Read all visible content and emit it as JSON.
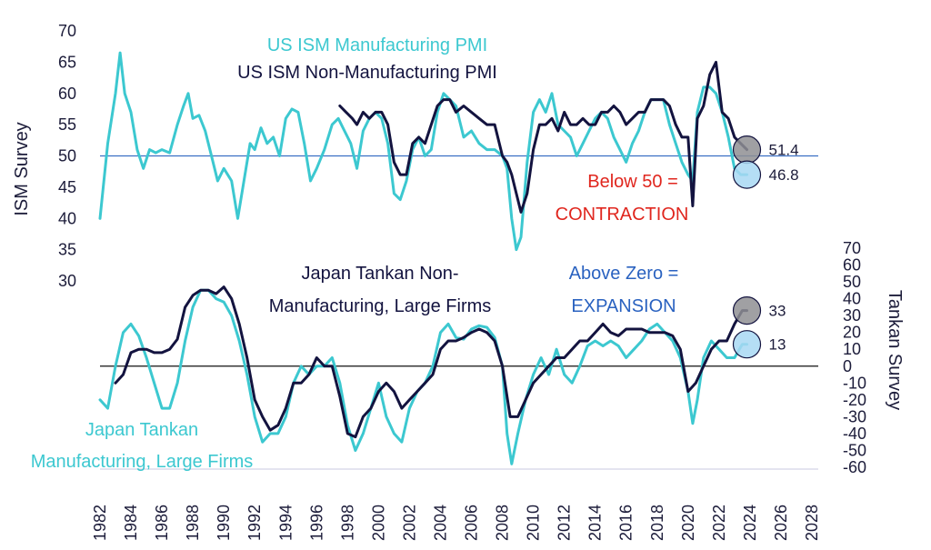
{
  "chart_data": {
    "type": "line",
    "left_axis_title": "ISM Survey",
    "right_axis_title": "Tankan Survey",
    "left_ticks": [
      70,
      65,
      60,
      55,
      50,
      45,
      40,
      35,
      30
    ],
    "right_ticks": [
      70,
      60,
      50,
      40,
      30,
      20,
      10,
      0,
      -10,
      -20,
      -30,
      -40,
      -50,
      -60
    ],
    "x_ticks": [
      "1982",
      "1984",
      "1986",
      "1988",
      "1990",
      "1992",
      "1994",
      "1996",
      "1998",
      "2000",
      "2002",
      "2004",
      "2006",
      "2008",
      "2010",
      "2012",
      "2014",
      "2016",
      "2018",
      "2020",
      "2022",
      "2024",
      "2026",
      "2028"
    ],
    "xlim": [
      1982,
      2028
    ],
    "left_ylim": [
      30,
      70
    ],
    "right_ylim": [
      -60,
      70
    ],
    "ism_reference": 50,
    "tankan_reference": 0,
    "colors": {
      "manufacturing": "#3cc8d0",
      "non_manufacturing": "#13133f",
      "reference_ism": "#3a6fc4",
      "reference_tankan": "#111111",
      "red": "#e0261e",
      "blue": "#2a62c0"
    },
    "annotations": {
      "ism_mfg": "US ISM Manufacturing PMI",
      "ism_nonmfg": "US ISM Non-Manufacturing PMI",
      "below50_line1": "Below 50 =",
      "below50_line2": "CONTRACTION",
      "tankan_nonmfg_line1": "Japan Tankan Non-",
      "tankan_nonmfg_line2": "Manufacturing, Large Firms",
      "above0_line1": "Above Zero =",
      "above0_line2": "EXPANSION",
      "tankan_mfg_line1": "Japan Tankan",
      "tankan_mfg_line2": "Manufacturing, Large Firms"
    },
    "end_values": {
      "ism_nonmfg": "51.4",
      "ism_mfg": "46.8",
      "tankan_nonmfg": "33",
      "tankan_mfg": "13"
    },
    "series": [
      {
        "key": "ism_mfg",
        "axis": "left",
        "x": [
          1982.0,
          1982.5,
          1983.0,
          1983.3,
          1983.6,
          1984.0,
          1984.4,
          1984.8,
          1985.2,
          1985.6,
          1986.0,
          1986.5,
          1987.0,
          1987.4,
          1987.7,
          1988.0,
          1988.4,
          1988.8,
          1989.2,
          1989.6,
          1990.0,
          1990.5,
          1990.9,
          1991.3,
          1991.7,
          1992.0,
          1992.4,
          1992.8,
          1993.2,
          1993.6,
          1994.0,
          1994.4,
          1994.8,
          1995.2,
          1995.6,
          1996.0,
          1996.5,
          1997.0,
          1997.4,
          1997.8,
          1998.2,
          1998.6,
          1999.0,
          1999.4,
          1999.8,
          2000.2,
          2000.6,
          2001.0,
          2001.4,
          2001.8,
          2002.2,
          2002.6,
          2003.0,
          2003.4,
          2003.8,
          2004.2,
          2004.6,
          2005.0,
          2005.5,
          2006.0,
          2006.5,
          2007.0,
          2007.5,
          2008.0,
          2008.3,
          2008.6,
          2008.9,
          2009.2,
          2009.6,
          2010.0,
          2010.4,
          2010.8,
          2011.2,
          2011.6,
          2012.0,
          2012.4,
          2012.8,
          2013.2,
          2013.6,
          2014.0,
          2014.4,
          2014.8,
          2015.2,
          2015.6,
          2016.0,
          2016.4,
          2016.8,
          2017.2,
          2017.6,
          2018.0,
          2018.4,
          2018.8,
          2019.2,
          2019.6,
          2020.0,
          2020.3,
          2020.6,
          2021.0,
          2021.4,
          2021.8,
          2022.2,
          2022.6,
          2023.0,
          2023.4,
          2023.8
        ],
        "values": [
          40,
          52,
          60,
          66.5,
          60,
          57,
          51,
          48,
          51,
          50.5,
          51,
          50.5,
          55,
          58,
          60,
          56,
          56.5,
          54,
          50,
          46,
          48,
          46,
          40,
          46,
          52,
          51,
          54.5,
          52,
          53,
          50,
          56,
          57.5,
          57,
          52,
          46,
          48,
          51,
          55,
          56,
          54,
          52,
          48,
          54,
          56,
          57,
          56,
          52,
          44,
          43,
          46,
          51,
          53,
          50,
          51,
          57,
          60,
          59,
          58,
          53,
          54,
          52,
          51,
          51,
          50,
          48,
          40,
          35,
          37,
          49,
          57,
          59,
          57,
          60,
          55,
          54,
          53,
          50,
          52,
          54,
          56,
          57,
          56,
          53,
          51,
          49,
          52,
          54,
          57,
          59,
          59,
          59,
          55,
          52,
          49,
          47,
          46,
          57,
          61,
          61,
          60,
          57,
          53,
          48,
          47,
          47
        ]
      },
      {
        "key": "ism_nonmfg",
        "axis": "left",
        "x": [
          1997.5,
          1997.9,
          1998.3,
          1998.6,
          1999.0,
          1999.4,
          1999.8,
          2000.2,
          2000.6,
          2001.0,
          2001.4,
          2001.8,
          2002.2,
          2002.6,
          2003.0,
          2003.4,
          2003.8,
          2004.2,
          2004.6,
          2005.0,
          2005.5,
          2006.0,
          2006.5,
          2007.0,
          2007.5,
          2008.0,
          2008.3,
          2008.6,
          2008.9,
          2009.2,
          2009.6,
          2010.0,
          2010.4,
          2010.8,
          2011.2,
          2011.6,
          2012.0,
          2012.4,
          2012.8,
          2013.2,
          2013.6,
          2014.0,
          2014.4,
          2014.8,
          2015.2,
          2015.6,
          2016.0,
          2016.4,
          2016.8,
          2017.2,
          2017.6,
          2018.0,
          2018.4,
          2018.8,
          2019.2,
          2019.6,
          2020.0,
          2020.3,
          2020.6,
          2021.0,
          2021.4,
          2021.8,
          2022.2,
          2022.6,
          2023.0,
          2023.4,
          2023.8
        ],
        "values": [
          58,
          57,
          56,
          55,
          57,
          56,
          57,
          57,
          55,
          49,
          47,
          47,
          52,
          53,
          52,
          55,
          58,
          59,
          59,
          57,
          58,
          57,
          56,
          55,
          55,
          50,
          49,
          47,
          44,
          41,
          44,
          51,
          55,
          55,
          56,
          54,
          57,
          55,
          55,
          56,
          55,
          55,
          57,
          57,
          58,
          57,
          55,
          56,
          57,
          57,
          59,
          59,
          59,
          58,
          55,
          53,
          53,
          42,
          56,
          58,
          63,
          65,
          57,
          56,
          53,
          52,
          51
        ]
      },
      {
        "key": "tankan_nonmfg",
        "axis": "right",
        "x": [
          1983.0,
          1983.5,
          1984.0,
          1984.5,
          1985.0,
          1985.5,
          1986.0,
          1986.5,
          1987.0,
          1987.5,
          1988.0,
          1988.5,
          1989.0,
          1989.5,
          1990.0,
          1990.5,
          1991.0,
          1991.5,
          1992.0,
          1992.5,
          1993.0,
          1993.5,
          1994.0,
          1994.5,
          1995.0,
          1995.5,
          1996.0,
          1996.5,
          1997.0,
          1997.5,
          1998.0,
          1998.5,
          1999.0,
          1999.5,
          2000.0,
          2000.5,
          2001.0,
          2001.5,
          2002.0,
          2002.5,
          2003.0,
          2003.5,
          2004.0,
          2004.5,
          2005.0,
          2005.5,
          2006.0,
          2006.5,
          2007.0,
          2007.5,
          2008.0,
          2008.5,
          2009.0,
          2009.5,
          2010.0,
          2010.5,
          2011.0,
          2011.5,
          2012.0,
          2012.5,
          2013.0,
          2013.5,
          2014.0,
          2014.5,
          2015.0,
          2015.5,
          2016.0,
          2016.5,
          2017.0,
          2017.5,
          2018.0,
          2018.5,
          2019.0,
          2019.5,
          2020.0,
          2020.5,
          2021.0,
          2021.5,
          2022.0,
          2022.5,
          2023.0,
          2023.5,
          2023.8
        ],
        "values": [
          -10,
          -5,
          8,
          10,
          10,
          8,
          8,
          10,
          16,
          35,
          42,
          45,
          45,
          43,
          47,
          40,
          25,
          5,
          -20,
          -30,
          -38,
          -35,
          -25,
          -10,
          -10,
          -5,
          5,
          0,
          0,
          -18,
          -40,
          -42,
          -30,
          -25,
          -15,
          -10,
          -15,
          -25,
          -20,
          -15,
          -10,
          -5,
          10,
          15,
          15,
          17,
          20,
          22,
          20,
          15,
          0,
          -30,
          -30,
          -20,
          -10,
          -5,
          0,
          5,
          5,
          10,
          15,
          15,
          20,
          25,
          20,
          18,
          22,
          22,
          22,
          20,
          20,
          20,
          18,
          10,
          -15,
          -10,
          0,
          10,
          15,
          15,
          25,
          33,
          33
        ]
      },
      {
        "key": "tankan_mfg",
        "axis": "right",
        "x": [
          1982.0,
          1982.5,
          1983.0,
          1983.5,
          1984.0,
          1984.5,
          1985.0,
          1985.5,
          1986.0,
          1986.5,
          1987.0,
          1987.5,
          1988.0,
          1988.5,
          1989.0,
          1989.5,
          1990.0,
          1990.5,
          1991.0,
          1991.5,
          1992.0,
          1992.5,
          1993.0,
          1993.5,
          1994.0,
          1994.5,
          1995.0,
          1995.5,
          1996.0,
          1996.5,
          1997.0,
          1997.5,
          1998.0,
          1998.5,
          1999.0,
          1999.5,
          2000.0,
          2000.5,
          2001.0,
          2001.5,
          2002.0,
          2002.5,
          2003.0,
          2003.5,
          2004.0,
          2004.5,
          2005.0,
          2005.5,
          2006.0,
          2006.5,
          2007.0,
          2007.5,
          2008.0,
          2008.3,
          2008.6,
          2009.0,
          2009.5,
          2010.0,
          2010.5,
          2011.0,
          2011.5,
          2012.0,
          2012.5,
          2013.0,
          2013.5,
          2014.0,
          2014.5,
          2015.0,
          2015.5,
          2016.0,
          2016.5,
          2017.0,
          2017.5,
          2018.0,
          2018.5,
          2019.0,
          2019.5,
          2020.0,
          2020.3,
          2020.6,
          2021.0,
          2021.5,
          2022.0,
          2022.5,
          2023.0,
          2023.5,
          2023.8
        ],
        "values": [
          -20,
          -25,
          0,
          20,
          25,
          18,
          5,
          -10,
          -25,
          -25,
          -10,
          15,
          35,
          45,
          45,
          40,
          38,
          30,
          15,
          -5,
          -30,
          -45,
          -40,
          -40,
          -30,
          -10,
          0,
          -5,
          0,
          0,
          5,
          -10,
          -35,
          -50,
          -40,
          -25,
          -10,
          -30,
          -40,
          -45,
          -25,
          -15,
          -10,
          0,
          20,
          25,
          17,
          16,
          22,
          24,
          23,
          17,
          0,
          -40,
          -58,
          -40,
          -20,
          -5,
          5,
          -5,
          10,
          -5,
          -10,
          0,
          12,
          15,
          12,
          15,
          12,
          5,
          10,
          15,
          22,
          25,
          20,
          15,
          5,
          -15,
          -34,
          -20,
          5,
          15,
          10,
          5,
          5,
          13,
          13
        ]
      }
    ]
  }
}
